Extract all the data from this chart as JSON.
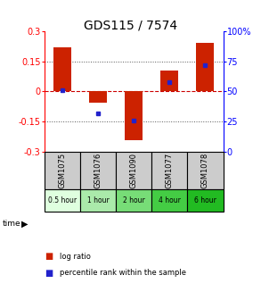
{
  "title": "GDS115 / 7574",
  "samples": [
    "GSM1075",
    "GSM1076",
    "GSM1090",
    "GSM1077",
    "GSM1078"
  ],
  "time_labels": [
    "0.5 hour",
    "1 hour",
    "2 hour",
    "4 hour",
    "6 hour"
  ],
  "time_colors": [
    "#dfffdf",
    "#aaeaaa",
    "#77dd77",
    "#44cc44",
    "#22bb22"
  ],
  "log_ratios": [
    0.22,
    -0.055,
    -0.245,
    0.105,
    0.245
  ],
  "percentile_ranks": [
    51,
    32,
    26,
    58,
    72
  ],
  "bar_color": "#cc2200",
  "dot_color": "#2222cc",
  "ylim": [
    -0.3,
    0.3
  ],
  "y2lim": [
    0,
    100
  ],
  "yticks": [
    -0.3,
    -0.15,
    0,
    0.15,
    0.3
  ],
  "y2ticks": [
    0,
    25,
    50,
    75,
    100
  ],
  "background_color": "#ffffff",
  "plot_bg": "#ffffff",
  "dotted_line_color": "#555555",
  "zero_line_color": "#cc0000",
  "title_fontsize": 10,
  "tick_fontsize": 7,
  "bar_width": 0.5,
  "sample_bg": "#cccccc",
  "legend_red_label": "log ratio",
  "legend_blue_label": "percentile rank within the sample"
}
